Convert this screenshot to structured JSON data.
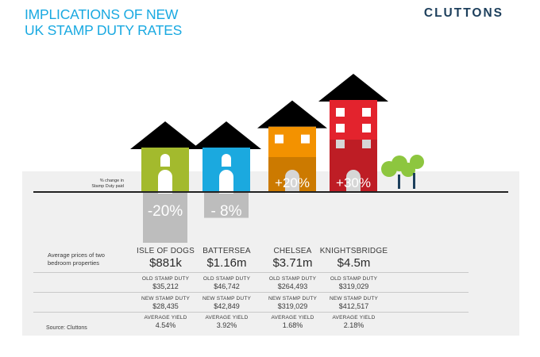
{
  "title_lines": [
    "IMPLICATIONS OF NEW",
    "UK STAMP DUTY RATES"
  ],
  "brand": "CLUTTONS",
  "axis_label_lines": [
    "% change in",
    "Stamp Duty paid"
  ],
  "row_label_lines": [
    "Average prices of two",
    "bedroom properties"
  ],
  "labels": {
    "old": "OLD STAMP DUTY",
    "new": "NEW STAMP DUTY",
    "yield": "AVERAGE YIELD"
  },
  "source": "Source: Cluttons",
  "colors": {
    "title": "#19a9e1",
    "Isle of Dogs": "#a3ba2d",
    "Battersea": "#1ba9df",
    "Chelsea": "#f39200",
    "Knightsbridge": "#e3232d",
    "change_box": "#bdbdbd",
    "tree": "#8dc63f",
    "panel": "#f0f0f0"
  },
  "chart_data": {
    "type": "bar",
    "title": "IMPLICATIONS OF NEW UK STAMP DUTY RATES",
    "ylabel": "% change in Stamp Duty paid",
    "categories": [
      "ISLE OF DOGS",
      "BATTERSEA",
      "CHELSEA",
      "KNIGHTSBRIDGE"
    ],
    "series": [
      {
        "name": "% change in Stamp Duty paid",
        "values": [
          -20,
          -8,
          20,
          30
        ]
      }
    ],
    "value_labels": [
      "-20%",
      "- 8%",
      "+20%",
      "+30%"
    ],
    "areas": [
      {
        "name": "ISLE OF DOGS",
        "price": "$881k",
        "old_duty": "$35,212",
        "new_duty": "$28,435",
        "yield": "4.54%"
      },
      {
        "name": "BATTERSEA",
        "price": "$1.16m",
        "old_duty": "$46,742",
        "new_duty": "$42,849",
        "yield": "3.92%"
      },
      {
        "name": "CHELSEA",
        "price": "$3.71m",
        "old_duty": "$264,493",
        "new_duty": "$319,029",
        "yield": "1.68%"
      },
      {
        "name": "KNIGHTSBRIDGE",
        "price": "$4.5m",
        "old_duty": "$319,029",
        "new_duty": "$412,517",
        "yield": "2.18%"
      }
    ]
  }
}
